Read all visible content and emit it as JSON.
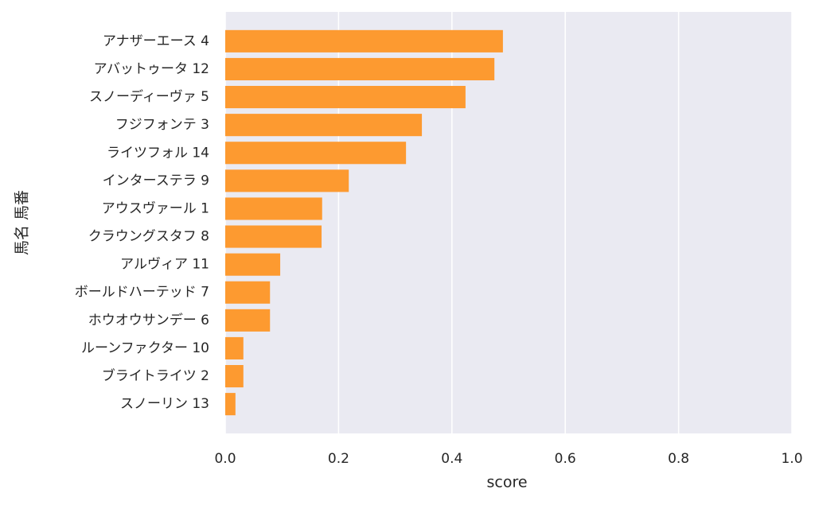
{
  "chart_data": {
    "type": "barh",
    "categories": [
      "アナザーエース 4",
      "アバットゥータ 12",
      "スノーディーヴァ 5",
      "フジフォンテ 3",
      "ライツフォル 14",
      "インターステラ 9",
      "アウスヴァール 1",
      "クラウングスタフ 8",
      "アルヴィア 11",
      "ボールドハーテッド 7",
      "ホウオウサンデー 6",
      "ルーンファクター 10",
      "ブライトライツ 2",
      "スノーリン 13"
    ],
    "values": [
      0.49,
      0.475,
      0.424,
      0.347,
      0.319,
      0.218,
      0.171,
      0.17,
      0.097,
      0.079,
      0.079,
      0.032,
      0.032,
      0.018
    ],
    "color": "#fd9a30",
    "xlabel": "score",
    "ylabel": "馬名 馬番",
    "xlim": [
      0,
      1
    ],
    "xticks": [
      {
        "value": 0,
        "label": "0.0"
      },
      {
        "value": 0.2,
        "label": "0.2"
      },
      {
        "value": 0.4,
        "label": "0.4"
      },
      {
        "value": 0.6,
        "label": "0.6"
      },
      {
        "value": 0.8,
        "label": "0.8"
      },
      {
        "value": 1,
        "label": "1.0"
      }
    ],
    "grid": true
  }
}
